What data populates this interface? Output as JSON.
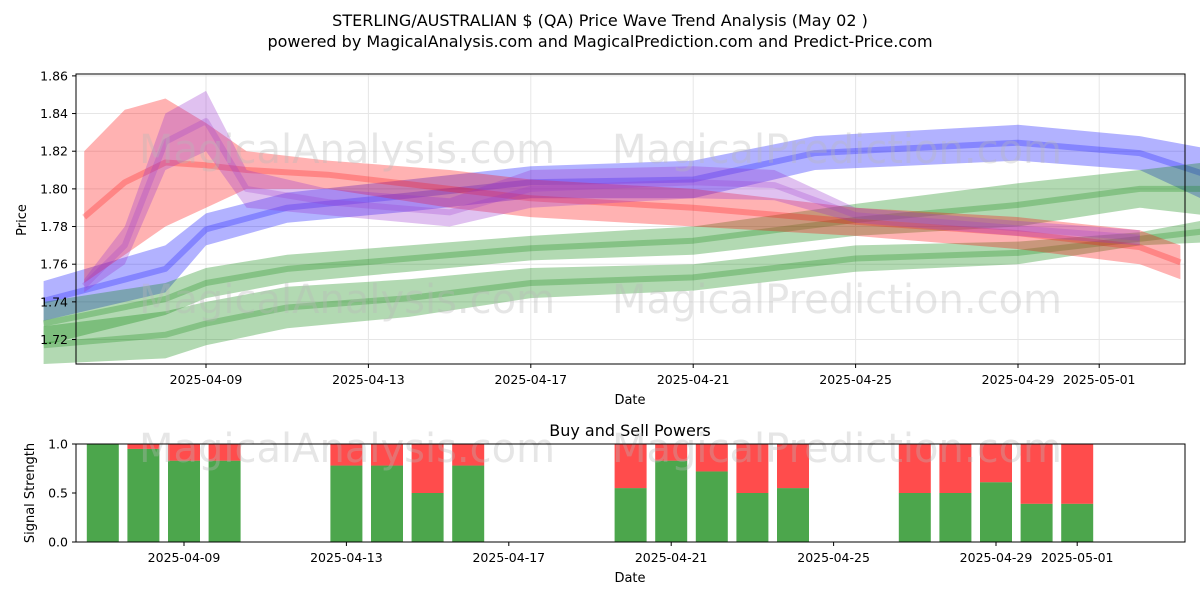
{
  "chart_data": [
    {
      "type": "area",
      "title": "STERLING/AUSTRALIAN $ (QA) Price Wave Trend Analysis (May 02 )",
      "subtitle": "powered by MagicalAnalysis.com and MagicalPrediction.com and Predict-Price.com",
      "xlabel": "Date",
      "ylabel": "Price",
      "ylim": [
        1.707,
        1.861
      ],
      "y_ticks": [
        "1.72",
        "1.74",
        "1.76",
        "1.78",
        "1.80",
        "1.82",
        "1.84",
        "1.86"
      ],
      "x_ticks": [
        "2025-04-09",
        "2025-04-13",
        "2025-04-17",
        "2025-04-21",
        "2025-04-25",
        "2025-04-29",
        "2025-05-01"
      ],
      "grid": true,
      "watermarks": [
        "MagicalAnalysis.com",
        "MagicalPrediction.com",
        "MagicalAnalysis.com",
        "MagicalPrediction.com"
      ],
      "series": [
        {
          "name": "blue wave",
          "color": "#0000ff",
          "x": [
            "2025-04-05",
            "2025-04-08",
            "2025-04-09",
            "2025-04-11",
            "2025-04-14",
            "2025-04-17",
            "2025-04-21",
            "2025-04-24",
            "2025-04-29",
            "2025-05-02",
            "2025-05-04"
          ],
          "upper": [
            1.751,
            1.77,
            1.787,
            1.798,
            1.805,
            1.812,
            1.815,
            1.828,
            1.834,
            1.828,
            1.82
          ],
          "lower": [
            1.73,
            1.745,
            1.77,
            1.782,
            1.788,
            1.795,
            1.795,
            1.81,
            1.815,
            1.81,
            1.79
          ]
        },
        {
          "name": "green wave upper",
          "color": "#008000",
          "x": [
            "2025-04-05",
            "2025-04-08",
            "2025-04-09",
            "2025-04-11",
            "2025-04-14",
            "2025-04-17",
            "2025-04-21",
            "2025-04-25",
            "2025-04-29",
            "2025-05-02",
            "2025-05-04"
          ],
          "upper": [
            1.74,
            1.75,
            1.758,
            1.765,
            1.77,
            1.775,
            1.78,
            1.792,
            1.803,
            1.81,
            1.815
          ],
          "lower": [
            1.717,
            1.733,
            1.742,
            1.75,
            1.756,
            1.762,
            1.765,
            1.775,
            1.78,
            1.79,
            1.785
          ]
        },
        {
          "name": "green wave lower",
          "color": "#008000",
          "x": [
            "2025-04-05",
            "2025-04-08",
            "2025-04-09",
            "2025-04-11",
            "2025-04-14",
            "2025-04-17",
            "2025-04-21",
            "2025-04-25",
            "2025-04-29",
            "2025-05-02",
            "2025-05-04"
          ],
          "upper": [
            1.727,
            1.735,
            1.74,
            1.748,
            1.752,
            1.758,
            1.76,
            1.77,
            1.772,
            1.777,
            1.785
          ],
          "lower": [
            1.707,
            1.71,
            1.717,
            1.726,
            1.732,
            1.742,
            1.746,
            1.756,
            1.76,
            1.77,
            1.772
          ]
        },
        {
          "name": "red wave",
          "color": "#ff0000",
          "x": [
            "2025-04-06",
            "2025-04-07",
            "2025-04-08",
            "2025-04-09",
            "2025-04-10",
            "2025-04-12",
            "2025-04-15",
            "2025-04-17",
            "2025-04-21",
            "2025-04-25",
            "2025-04-29",
            "2025-05-02",
            "2025-05-03"
          ],
          "upper": [
            1.82,
            1.842,
            1.848,
            1.835,
            1.82,
            1.815,
            1.81,
            1.805,
            1.8,
            1.79,
            1.785,
            1.778,
            1.77
          ],
          "lower": [
            1.75,
            1.765,
            1.78,
            1.79,
            1.8,
            1.8,
            1.79,
            1.785,
            1.78,
            1.775,
            1.768,
            1.76,
            1.752
          ]
        },
        {
          "name": "purple wave",
          "color": "#9932cc",
          "x": [
            "2025-04-06",
            "2025-04-07",
            "2025-04-08",
            "2025-04-09",
            "2025-04-10",
            "2025-04-12",
            "2025-04-15",
            "2025-04-17",
            "2025-04-21",
            "2025-04-23",
            "2025-04-25",
            "2025-04-29",
            "2025-05-02"
          ],
          "upper": [
            1.752,
            1.78,
            1.84,
            1.852,
            1.81,
            1.8,
            1.795,
            1.81,
            1.812,
            1.81,
            1.79,
            1.783,
            1.778
          ],
          "lower": [
            1.745,
            1.76,
            1.81,
            1.82,
            1.79,
            1.786,
            1.78,
            1.79,
            1.795,
            1.794,
            1.782,
            1.775,
            1.77
          ]
        }
      ]
    },
    {
      "type": "bar",
      "title": "Buy and Sell Powers",
      "xlabel": "Date",
      "ylabel": "Signal Strength",
      "ylim": [
        0,
        1.0
      ],
      "y_ticks": [
        "0.0",
        "0.5",
        "1.0"
      ],
      "x_ticks": [
        "2025-04-09",
        "2025-04-13",
        "2025-04-17",
        "2025-04-21",
        "2025-04-25",
        "2025-04-29",
        "2025-05-01"
      ],
      "buy_color": "#008000",
      "sell_color": "#ff0000",
      "categories": [
        "2025-04-07",
        "2025-04-08",
        "2025-04-09",
        "2025-04-10",
        "2025-04-13",
        "2025-04-14",
        "2025-04-15",
        "2025-04-16",
        "2025-04-20",
        "2025-04-21",
        "2025-04-22",
        "2025-04-23",
        "2025-04-24",
        "2025-04-27",
        "2025-04-28",
        "2025-04-29",
        "2025-04-30",
        "2025-05-01"
      ],
      "series": [
        {
          "name": "Buy",
          "values": [
            1.0,
            0.95,
            0.83,
            0.83,
            0.78,
            0.78,
            0.5,
            0.78,
            0.55,
            0.83,
            0.72,
            0.5,
            0.55,
            0.5,
            0.5,
            0.61,
            0.39,
            0.39
          ]
        },
        {
          "name": "Sell",
          "values": [
            0.0,
            0.05,
            0.17,
            0.17,
            0.22,
            0.22,
            0.5,
            0.22,
            0.45,
            0.17,
            0.28,
            0.5,
            0.45,
            0.5,
            0.5,
            0.39,
            0.61,
            0.61
          ]
        }
      ]
    }
  ]
}
